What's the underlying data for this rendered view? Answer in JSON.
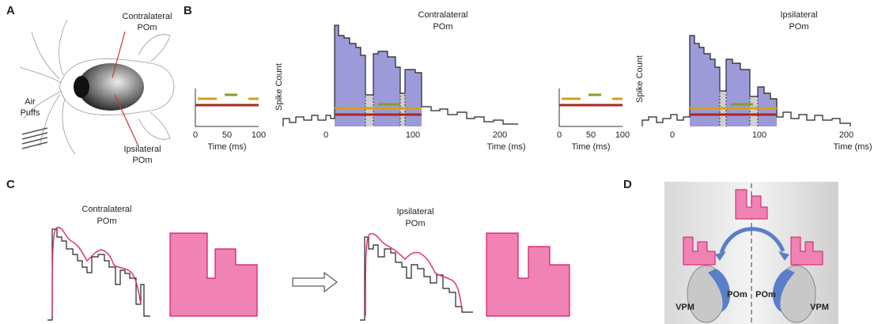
{
  "panel_a": {
    "label": "A",
    "contralateral": [
      "Contralateral",
      "POm"
    ],
    "ipsilateral": [
      "Ipsilateral",
      "POm"
    ],
    "stimulus": [
      "Air",
      "Puffs"
    ]
  },
  "panel_b": {
    "label": "B",
    "contralateral": {
      "title": [
        "Contralateral",
        "POm"
      ],
      "y_label": "Spike Count",
      "x_label": "Time (ms)",
      "xticks": [
        "0",
        "100",
        "200"
      ],
      "inset": {
        "x_label": "Time (ms)",
        "xticks": [
          "0",
          "50",
          "100"
        ]
      }
    },
    "ipsilateral": {
      "title": [
        "Ipsilateral",
        "POm"
      ],
      "y_label": "Spike Count",
      "x_label": "Time (ms)",
      "xticks": [
        "0",
        "100",
        "200"
      ],
      "inset": {
        "x_label": "Time (ms)",
        "xticks": [
          "0",
          "50",
          "100"
        ]
      }
    }
  },
  "panel_c": {
    "label": "C",
    "contralateral": [
      "Contralateral",
      "POm"
    ],
    "ipsilateral": [
      "Ipsilateral",
      "POm"
    ]
  },
  "panel_d": {
    "label": "D",
    "left_pom": "POm",
    "right_pom": "POm",
    "left_vpm": "VPM",
    "right_vpm": "VPM"
  }
}
